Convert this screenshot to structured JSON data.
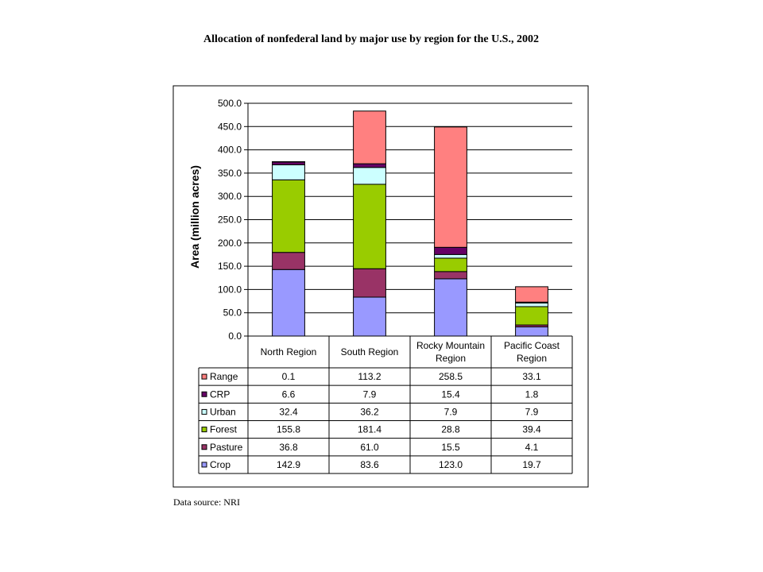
{
  "title": "Allocation of nonfederal land by major use by region for the U.S., 2002",
  "source": "Data source: NRI",
  "chart_data": {
    "type": "bar",
    "stacked": true,
    "categories": [
      [
        "North Region"
      ],
      [
        "South Region"
      ],
      [
        "Rocky Mountain",
        "Region"
      ],
      [
        "Pacific Coast",
        "Region"
      ]
    ],
    "ylabel": "Area (million acres)",
    "ylim": [
      0,
      500
    ],
    "ytick_step": 50,
    "ytick_labels": [
      "0.0",
      "50.0",
      "100.0",
      "150.0",
      "200.0",
      "250.0",
      "300.0",
      "350.0",
      "400.0",
      "450.0",
      "500.0"
    ],
    "grid": true,
    "legend": "data table below chart",
    "series": [
      {
        "name": "Crop",
        "color": "#9999ff",
        "values": [
          142.9,
          83.6,
          123.0,
          19.7
        ],
        "labels": [
          "142.9",
          "83.6",
          "123.0",
          "19.7"
        ]
      },
      {
        "name": "Pasture",
        "color": "#993366",
        "values": [
          36.8,
          61.0,
          15.5,
          4.1
        ],
        "labels": [
          "36.8",
          "61.0",
          "15.5",
          "4.1"
        ]
      },
      {
        "name": "Forest",
        "color": "#99cc00",
        "values": [
          155.8,
          181.4,
          28.8,
          39.4
        ],
        "labels": [
          "155.8",
          "181.4",
          "28.8",
          "39.4"
        ]
      },
      {
        "name": "Urban",
        "color": "#ccffff",
        "values": [
          32.4,
          36.2,
          7.9,
          7.9
        ],
        "labels": [
          "32.4",
          "36.2",
          "7.9",
          "7.9"
        ]
      },
      {
        "name": "CRP",
        "color": "#660066",
        "values": [
          6.6,
          7.9,
          15.4,
          1.8
        ],
        "labels": [
          "6.6",
          "7.9",
          "15.4",
          "1.8"
        ]
      },
      {
        "name": "Range",
        "color": "#ff8080",
        "values": [
          0.1,
          113.2,
          258.5,
          33.1
        ],
        "labels": [
          "0.1",
          "113.2",
          "258.5",
          "33.1"
        ]
      }
    ]
  }
}
